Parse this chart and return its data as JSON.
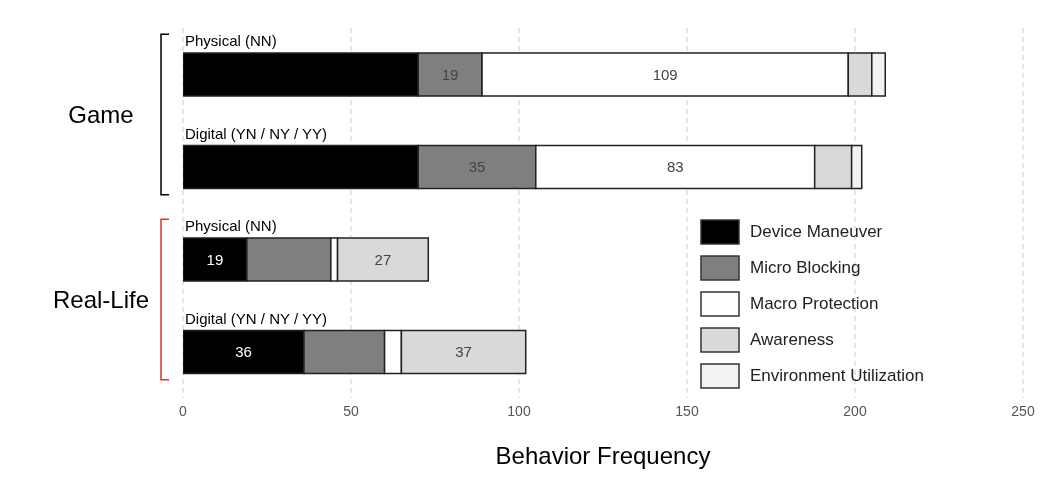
{
  "chart_data": {
    "type": "bar",
    "orientation": "horizontal",
    "stacked": true,
    "xlabel": "Behavior Frequency",
    "categories": [
      "Physical (NN)",
      "Digital (YN / NY / YY)",
      "Physical (NN)",
      "Digital (YN / NY / YY)"
    ],
    "series": [
      {
        "name": "Device Maneuver",
        "color": "#000000",
        "values": [
          70,
          70,
          19,
          36
        ],
        "value_labels": [
          null,
          null,
          "19",
          "36"
        ]
      },
      {
        "name": "Micro Blocking",
        "color": "#7f7f7f",
        "values": [
          19,
          35,
          25,
          24
        ],
        "value_labels": [
          "19",
          "35",
          null,
          null
        ]
      },
      {
        "name": "Macro Protection",
        "color": "#ffffff",
        "values": [
          109,
          83,
          2,
          5
        ],
        "value_labels": [
          "109",
          "83",
          null,
          null
        ]
      },
      {
        "name": "Awareness",
        "color": "#d9d9d9",
        "values": [
          7,
          11,
          27,
          37
        ],
        "value_labels": [
          null,
          null,
          "27",
          "37"
        ]
      },
      {
        "name": "Environment Utilization",
        "color": "#f2f2f2",
        "values": [
          4,
          3,
          0,
          0
        ],
        "value_labels": [
          null,
          null,
          null,
          null
        ]
      }
    ],
    "xlim": [
      0,
      250
    ],
    "xticks": [
      0,
      50,
      100,
      150,
      200,
      250
    ],
    "grid": "x",
    "legend": "bottom right",
    "annotations": [
      "Game",
      "Real-Life"
    ]
  }
}
